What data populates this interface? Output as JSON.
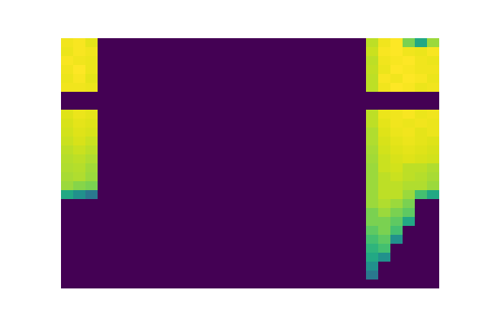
{
  "chart_data": {
    "type": "heatmap",
    "color": "viridis",
    "color_range": [
      0,
      1
    ],
    "tick_labels": false,
    "cells": [
      [
        0.98,
        0.99,
        0.96,
        0,
        0,
        0,
        0,
        0,
        0,
        0,
        0,
        0,
        0,
        0,
        0,
        0,
        0,
        0,
        0,
        0,
        0,
        0,
        0,
        0,
        0,
        0.9,
        0.98,
        1,
        0.8,
        0.6,
        0.85
      ],
      [
        0.97,
        0.99,
        0.98,
        0,
        0,
        0,
        0,
        0,
        0,
        0,
        0,
        0,
        0,
        0,
        0,
        0,
        0,
        0,
        0,
        0,
        0,
        0,
        0,
        0,
        0,
        0.92,
        0.99,
        1,
        0.98,
        0.97,
        0.99
      ],
      [
        0.99,
        0.98,
        0.97,
        0,
        0,
        0,
        0,
        0,
        0,
        0,
        0,
        0,
        0,
        0,
        0,
        0,
        0,
        0,
        0,
        0,
        0,
        0,
        0,
        0,
        0,
        0.9,
        0.98,
        0.99,
        1,
        0.98,
        0.97
      ],
      [
        0.98,
        1,
        0.97,
        0,
        0,
        0,
        0,
        0,
        0,
        0,
        0,
        0,
        0,
        0,
        0,
        0,
        0,
        0,
        0,
        0,
        0,
        0,
        0,
        0,
        0,
        0.91,
        0.97,
        1,
        0.99,
        0.98,
        0.98
      ],
      [
        0.97,
        0.99,
        0.96,
        0,
        0,
        0,
        0,
        0,
        0,
        0,
        0,
        0,
        0,
        0,
        0,
        0,
        0,
        0,
        0,
        0,
        0,
        0,
        0,
        0,
        0,
        0.9,
        0.99,
        0.98,
        1,
        0.99,
        0.97
      ],
      [
        0.98,
        0.98,
        0.97,
        0,
        0,
        0,
        0,
        0,
        0,
        0,
        0,
        0,
        0,
        0,
        0,
        0,
        0,
        0,
        0,
        0,
        0,
        0,
        0,
        0,
        0,
        0.9,
        0.98,
        1,
        0.99,
        0.97,
        0.98
      ],
      [
        0,
        0,
        0,
        0,
        0,
        0,
        0,
        0,
        0,
        0,
        0,
        0,
        0,
        0,
        0,
        0,
        0,
        0,
        0,
        0,
        0,
        0,
        0,
        0,
        0,
        0,
        0,
        0,
        0,
        0,
        0
      ],
      [
        0,
        0,
        0,
        0,
        0,
        0,
        0,
        0,
        0,
        0,
        0,
        0,
        0,
        0,
        0,
        0,
        0,
        0,
        0,
        0,
        0,
        0,
        0,
        0,
        0,
        0,
        0,
        0,
        0,
        0,
        0
      ],
      [
        0.95,
        0.97,
        0.96,
        0,
        0,
        0,
        0,
        0,
        0,
        0,
        0,
        0,
        0,
        0,
        0,
        0,
        0,
        0,
        0,
        0,
        0,
        0,
        0,
        0,
        0,
        0.9,
        0.97,
        0.98,
        0.99,
        0.97,
        0.98
      ],
      [
        0.94,
        0.96,
        0.95,
        0,
        0,
        0,
        0,
        0,
        0,
        0,
        0,
        0,
        0,
        0,
        0,
        0,
        0,
        0,
        0,
        0,
        0,
        0,
        0,
        0,
        0,
        0.9,
        0.96,
        0.98,
        0.97,
        0.98,
        0.97
      ],
      [
        0.93,
        0.95,
        0.94,
        0,
        0,
        0,
        0,
        0,
        0,
        0,
        0,
        0,
        0,
        0,
        0,
        0,
        0,
        0,
        0,
        0,
        0,
        0,
        0,
        0,
        0,
        0.88,
        0.95,
        0.97,
        0.98,
        0.96,
        0.97
      ],
      [
        0.92,
        0.94,
        0.92,
        0,
        0,
        0,
        0,
        0,
        0,
        0,
        0,
        0,
        0,
        0,
        0,
        0,
        0,
        0,
        0,
        0,
        0,
        0,
        0,
        0,
        0,
        0.88,
        0.94,
        0.96,
        0.97,
        0.96,
        0.95
      ],
      [
        0.9,
        0.92,
        0.9,
        0,
        0,
        0,
        0,
        0,
        0,
        0,
        0,
        0,
        0,
        0,
        0,
        0,
        0,
        0,
        0,
        0,
        0,
        0,
        0,
        0,
        0,
        0.87,
        0.93,
        0.95,
        0.96,
        0.95,
        0.94
      ],
      [
        0.89,
        0.9,
        0.88,
        0,
        0,
        0,
        0,
        0,
        0,
        0,
        0,
        0,
        0,
        0,
        0,
        0,
        0,
        0,
        0,
        0,
        0,
        0,
        0,
        0,
        0,
        0.86,
        0.92,
        0.94,
        0.95,
        0.94,
        0.93
      ],
      [
        0.88,
        0.89,
        0.86,
        0,
        0,
        0,
        0,
        0,
        0,
        0,
        0,
        0,
        0,
        0,
        0,
        0,
        0,
        0,
        0,
        0,
        0,
        0,
        0,
        0,
        0,
        0.85,
        0.92,
        0.93,
        0.9,
        0.9,
        0.88
      ],
      [
        0.87,
        0.88,
        0.85,
        0,
        0,
        0,
        0,
        0,
        0,
        0,
        0,
        0,
        0,
        0,
        0,
        0,
        0,
        0,
        0,
        0,
        0,
        0,
        0,
        0,
        0,
        0.85,
        0.9,
        0.92,
        0.9,
        0.89,
        0.87
      ],
      [
        0.85,
        0.82,
        0.8,
        0,
        0,
        0,
        0,
        0,
        0,
        0,
        0,
        0,
        0,
        0,
        0,
        0,
        0,
        0,
        0,
        0,
        0,
        0,
        0,
        0,
        0,
        0.85,
        0.9,
        0.9,
        0.88,
        0.88,
        0.85
      ],
      [
        0.6,
        0.5,
        0.4,
        0,
        0,
        0,
        0,
        0,
        0,
        0,
        0,
        0,
        0,
        0,
        0,
        0,
        0,
        0,
        0,
        0,
        0,
        0,
        0,
        0,
        0,
        0.85,
        0.9,
        0.9,
        0.85,
        0.7,
        0.6
      ],
      [
        0,
        0,
        0,
        0,
        0,
        0,
        0,
        0,
        0,
        0,
        0,
        0,
        0,
        0,
        0,
        0,
        0,
        0,
        0,
        0,
        0,
        0,
        0,
        0,
        0,
        0.85,
        0.88,
        0.85,
        0.8,
        0,
        0
      ],
      [
        0,
        0,
        0,
        0,
        0,
        0,
        0,
        0,
        0,
        0,
        0,
        0,
        0,
        0,
        0,
        0,
        0,
        0,
        0,
        0,
        0,
        0,
        0,
        0,
        0,
        0.8,
        0.85,
        0.8,
        0.75,
        0,
        0
      ],
      [
        0,
        0,
        0,
        0,
        0,
        0,
        0,
        0,
        0,
        0,
        0,
        0,
        0,
        0,
        0,
        0,
        0,
        0,
        0,
        0,
        0,
        0,
        0,
        0,
        0,
        0.8,
        0.8,
        0.75,
        0.6,
        0,
        0
      ],
      [
        0,
        0,
        0,
        0,
        0,
        0,
        0,
        0,
        0,
        0,
        0,
        0,
        0,
        0,
        0,
        0,
        0,
        0,
        0,
        0,
        0,
        0,
        0,
        0,
        0,
        0.75,
        0.8,
        0.7,
        0,
        0,
        0
      ],
      [
        0,
        0,
        0,
        0,
        0,
        0,
        0,
        0,
        0,
        0,
        0,
        0,
        0,
        0,
        0,
        0,
        0,
        0,
        0,
        0,
        0,
        0,
        0,
        0,
        0,
        0.7,
        0.75,
        0.5,
        0,
        0,
        0
      ],
      [
        0,
        0,
        0,
        0,
        0,
        0,
        0,
        0,
        0,
        0,
        0,
        0,
        0,
        0,
        0,
        0,
        0,
        0,
        0,
        0,
        0,
        0,
        0,
        0,
        0,
        0.65,
        0.7,
        0,
        0,
        0,
        0
      ],
      [
        0,
        0,
        0,
        0,
        0,
        0,
        0,
        0,
        0,
        0,
        0,
        0,
        0,
        0,
        0,
        0,
        0,
        0,
        0,
        0,
        0,
        0,
        0,
        0,
        0,
        0.6,
        0.5,
        0,
        0,
        0,
        0
      ],
      [
        0,
        0,
        0,
        0,
        0,
        0,
        0,
        0,
        0,
        0,
        0,
        0,
        0,
        0,
        0,
        0,
        0,
        0,
        0,
        0,
        0,
        0,
        0,
        0,
        0,
        0.5,
        0,
        0,
        0,
        0,
        0
      ],
      [
        0,
        0,
        0,
        0,
        0,
        0,
        0,
        0,
        0,
        0,
        0,
        0,
        0,
        0,
        0,
        0,
        0,
        0,
        0,
        0,
        0,
        0,
        0,
        0,
        0,
        0.4,
        0,
        0,
        0,
        0,
        0
      ],
      [
        0,
        0,
        0,
        0,
        0,
        0,
        0,
        0,
        0,
        0,
        0,
        0,
        0,
        0,
        0,
        0,
        0,
        0,
        0,
        0,
        0,
        0,
        0,
        0,
        0,
        0,
        0,
        0,
        0,
        0,
        0
      ]
    ]
  }
}
